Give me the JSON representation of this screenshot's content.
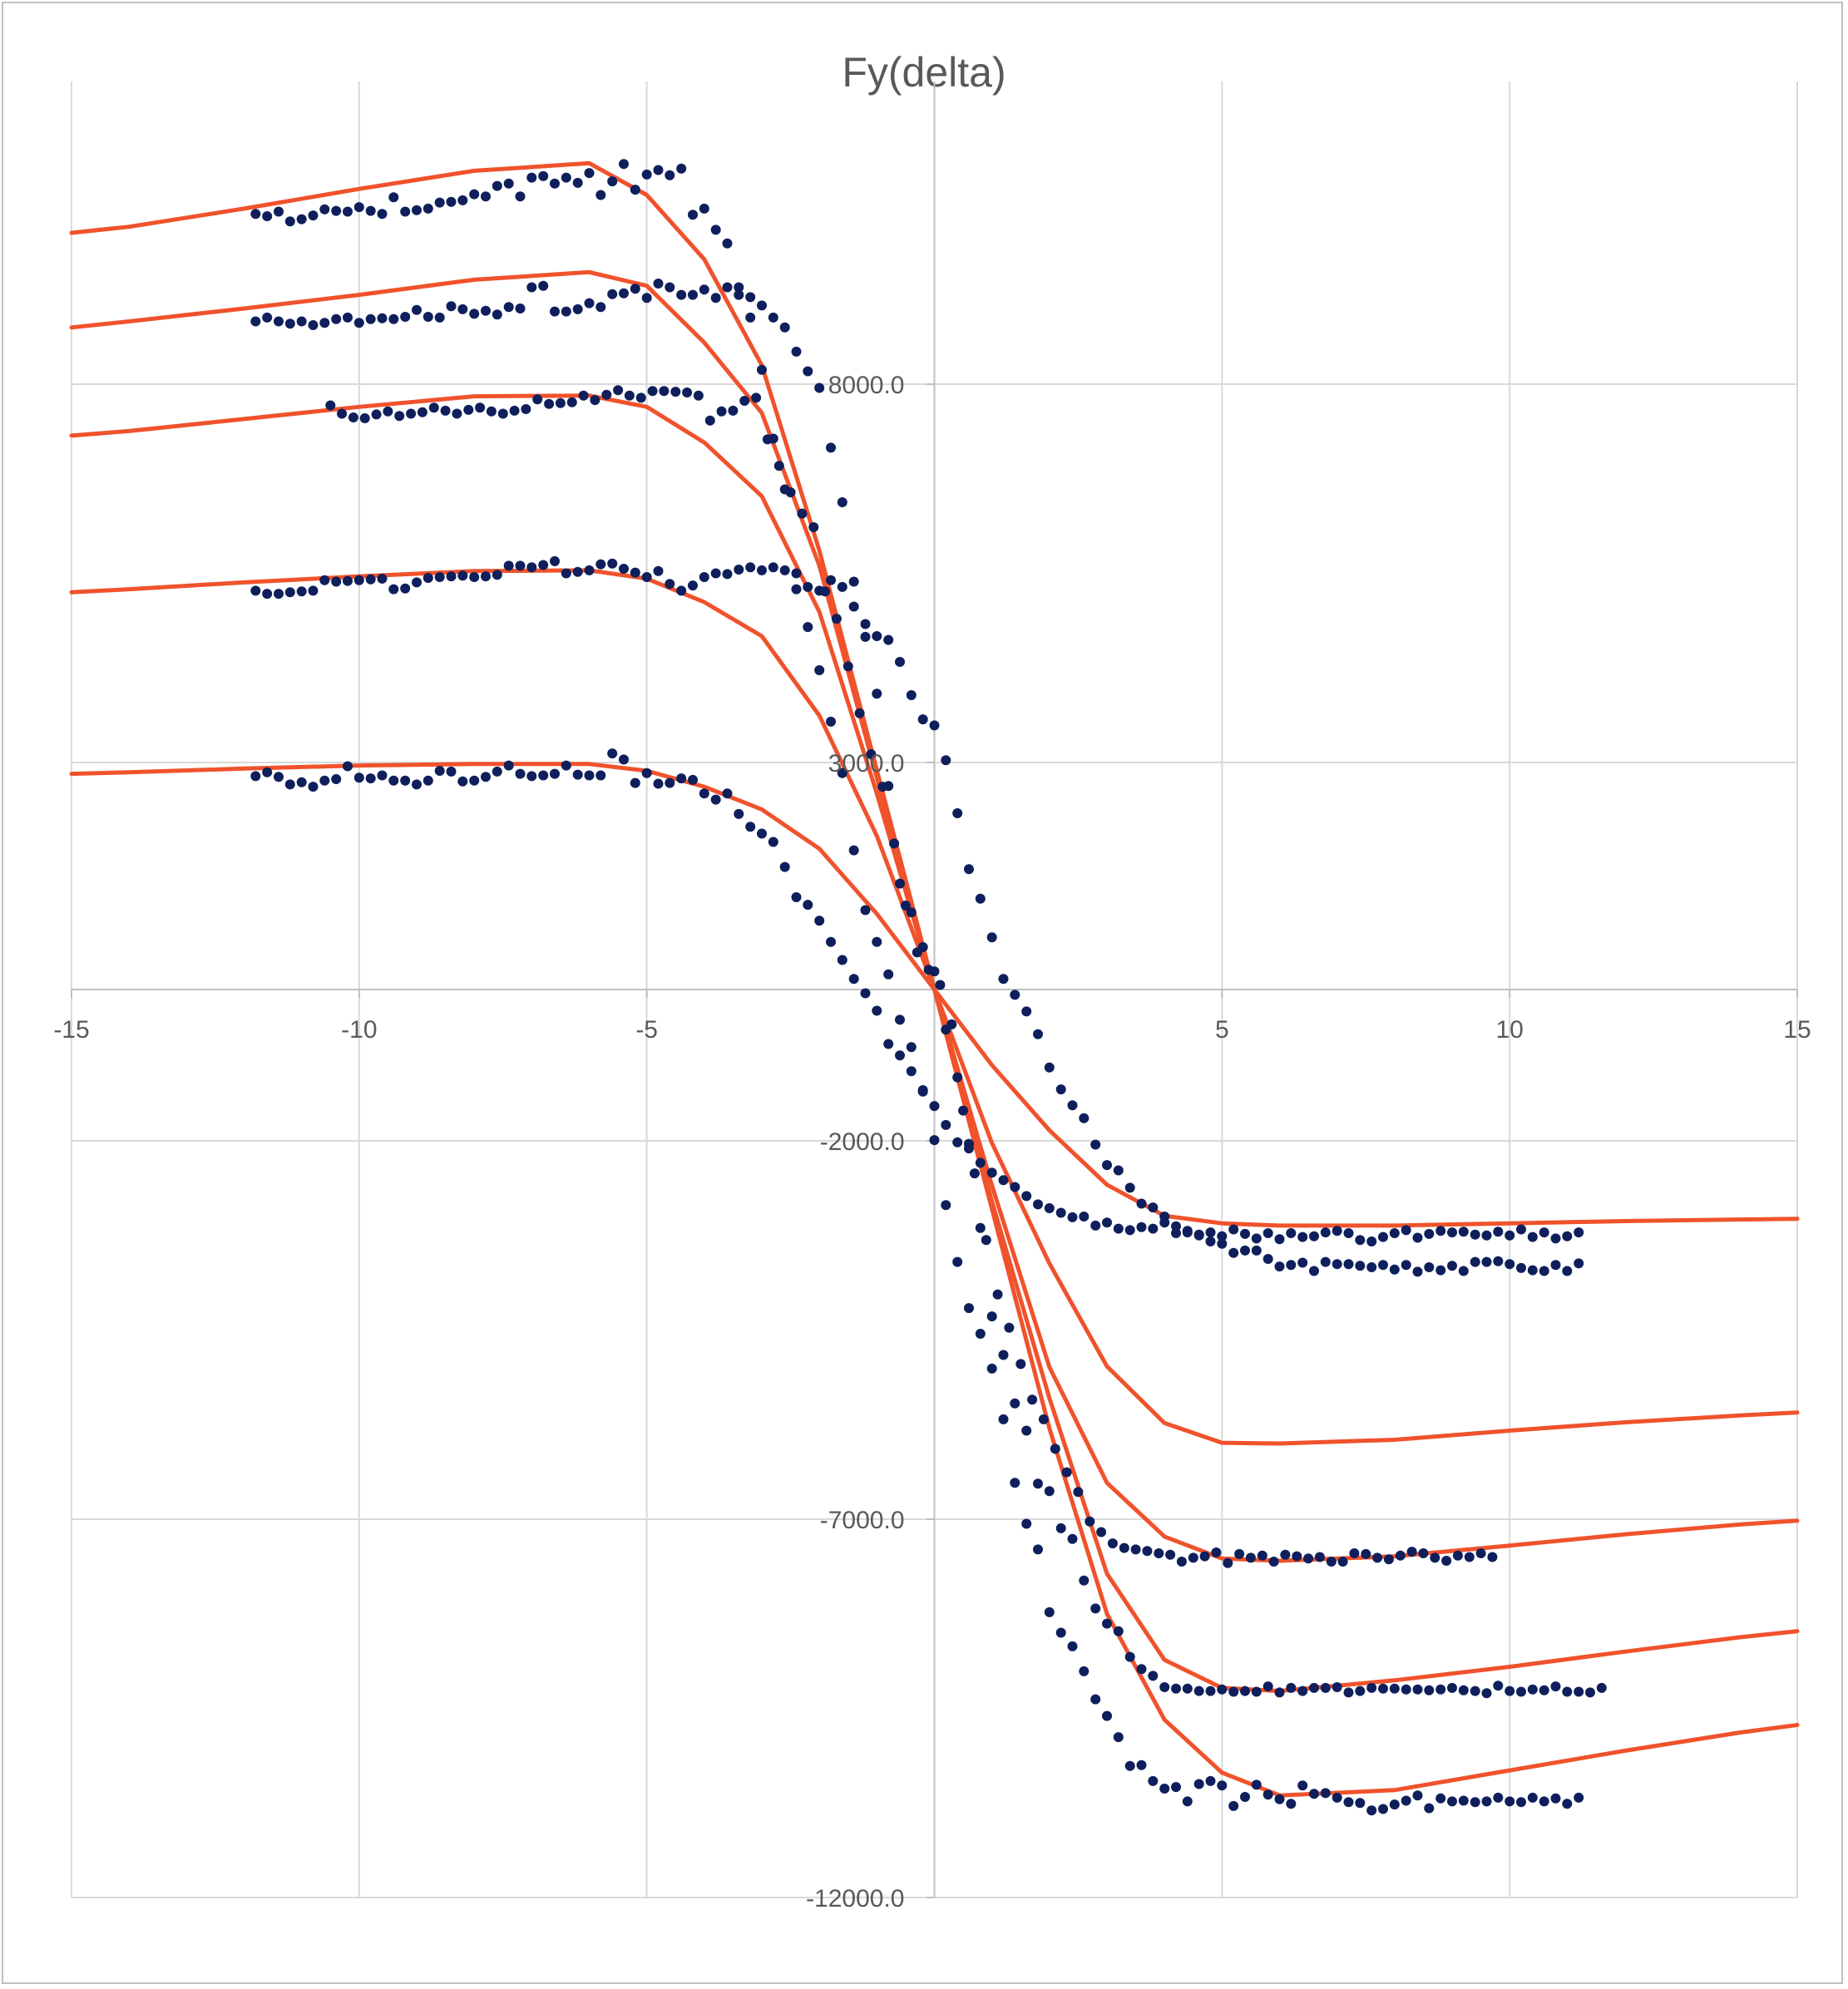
{
  "chart_data": {
    "type": "scatter",
    "title": "Fy(delta)",
    "xlabel": "",
    "ylabel": "",
    "xlim": [
      -15,
      15
    ],
    "ylim": [
      -12000,
      12000
    ],
    "x_ticks": [
      -15,
      -10,
      -5,
      0,
      5,
      10,
      15
    ],
    "x_tick_labels": [
      "-15",
      "-10",
      "-5",
      "",
      "5",
      "10",
      "15"
    ],
    "y_ticks": [
      8000,
      3000,
      -2000,
      -7000,
      -12000
    ],
    "y_tick_labels": [
      "8000.0",
      "3000.0",
      "-2000.0",
      "-7000.0",
      "-12000.0"
    ],
    "grid": true,
    "legend": "none",
    "colors": {
      "model": "#f0522c",
      "measured": "#0f1f5c",
      "grid": "#d9d9d9",
      "axis": "#bfbfbf",
      "text": "#595959"
    },
    "model_x": [
      -15,
      -14,
      -12,
      -10,
      -8,
      -6,
      -5,
      -4,
      -3,
      -2,
      -1,
      0,
      1,
      2,
      3,
      4,
      5,
      6,
      8,
      10,
      12,
      14,
      15
    ],
    "model_series": [
      {
        "name": "model-1",
        "y": [
          10000,
          10080,
          10320,
          10580,
          10820,
          10920,
          10500,
          9650,
          8250,
          5800,
          2900,
          0,
          -2900,
          -5800,
          -8250,
          -9650,
          -10350,
          -10650,
          -10580,
          -10320,
          -10060,
          -9820,
          -9720
        ]
      },
      {
        "name": "model-2",
        "y": [
          8750,
          8830,
          9000,
          9180,
          9380,
          9480,
          9300,
          8550,
          7620,
          5600,
          2800,
          0,
          -2800,
          -5400,
          -7720,
          -8860,
          -9230,
          -9270,
          -9130,
          -8950,
          -8750,
          -8560,
          -8480
        ]
      },
      {
        "name": "model-3",
        "y": [
          7320,
          7380,
          7540,
          7700,
          7840,
          7850,
          7700,
          7230,
          6520,
          4990,
          2590,
          0,
          -2590,
          -4990,
          -6520,
          -7230,
          -7520,
          -7550,
          -7490,
          -7350,
          -7200,
          -7070,
          -7020
        ]
      },
      {
        "name": "model-4",
        "y": [
          5250,
          5290,
          5380,
          5460,
          5530,
          5540,
          5430,
          5120,
          4670,
          3620,
          2030,
          0,
          -2030,
          -3620,
          -4980,
          -5730,
          -5990,
          -6000,
          -5950,
          -5830,
          -5720,
          -5630,
          -5590
        ]
      },
      {
        "name": "model-5",
        "y": [
          2850,
          2870,
          2920,
          2960,
          2980,
          2980,
          2890,
          2680,
          2380,
          1860,
          1000,
          0,
          -1000,
          -1860,
          -2580,
          -2990,
          -3090,
          -3120,
          -3120,
          -3090,
          -3060,
          -3040,
          -3030
        ]
      }
    ],
    "measured_series": [
      {
        "name": "measured-1",
        "mode": "sweep",
        "x_start": -11.8,
        "x_end": 11.2,
        "x_step": 0.2,
        "y": [
          10250,
          10220,
          10280,
          10150,
          10180,
          10230,
          10310,
          10290,
          10280,
          10340,
          10290,
          10250,
          10470,
          10280,
          10300,
          10320,
          10400,
          10410,
          10430,
          10510,
          10480,
          10620,
          10650,
          10480,
          10730,
          10750,
          10650,
          10730,
          10660,
          10790,
          10500,
          10680,
          10910,
          10570,
          10770,
          10830,
          10760,
          10850,
          10240,
          10320,
          10040,
          9860,
          9180,
          8880,
          8190,
          7280,
          6610,
          5500,
          4790,
          4220,
          3540,
          2860,
          1840,
          1050,
          630,
          200,
          -400,
          -760,
          -1350,
          -1990,
          -2850,
          -3600,
          -4210,
          -4550,
          -5010,
          -5680,
          -6520,
          -7060,
          -7400,
          -8230,
          -8500,
          -8680,
          -9010,
          -9380,
          -9600,
          -9880,
          -10260,
          -10250,
          -10460,
          -10560,
          -10540,
          -10730,
          -10500,
          -10460,
          -10520,
          -10790,
          -10670,
          -10510,
          -10640,
          -10700,
          -10760,
          -10520,
          -10630,
          -10620,
          -10680,
          -10740,
          -10750,
          -10850,
          -10830,
          -10770,
          -10720,
          -10650,
          -10820,
          -10690,
          -10730,
          -10720,
          -10740,
          -10730,
          -10680,
          -10730,
          -10740,
          -10680,
          -10730,
          -10690,
          -10760,
          -10680
        ]
      },
      {
        "name": "measured-2",
        "mode": "sweep",
        "x_start": -11.8,
        "x_end": 11.7,
        "x_step": 0.2,
        "y": [
          8830,
          8880,
          8830,
          8800,
          8830,
          8780,
          8810,
          8860,
          8880,
          8810,
          8860,
          8870,
          8860,
          8890,
          8980,
          8890,
          8880,
          9030,
          8990,
          8930,
          8970,
          8920,
          9020,
          9000,
          9280,
          9300,
          8960,
          8960,
          8990,
          9070,
          9020,
          9190,
          9200,
          9260,
          9140,
          9330,
          9280,
          9180,
          9180,
          9250,
          9140,
          9280,
          9280,
          9150,
          9040,
          8880,
          8750,
          8430,
          8170,
          7950,
          7160,
          6440,
          5390,
          4660,
          3910,
          2690,
          1400,
          1020,
          560,
          240,
          -530,
          -1160,
          -2040,
          -3150,
          -4320,
          -4830,
          -5470,
          -5830,
          -6530,
          -6630,
          -7120,
          -7260,
          -7810,
          -8180,
          -8380,
          -8480,
          -8820,
          -8980,
          -9070,
          -9220,
          -9240,
          -9240,
          -9270,
          -9270,
          -9250,
          -9280,
          -9270,
          -9280,
          -9210,
          -9290,
          -9230,
          -9270,
          -9230,
          -9230,
          -9220,
          -9290,
          -9270,
          -9230,
          -9240,
          -9240,
          -9250,
          -9250,
          -9260,
          -9250,
          -9230,
          -9260,
          -9270,
          -9300,
          -9200,
          -9270,
          -9280,
          -9250,
          -9260,
          -9210,
          -9280,
          -9280,
          -9290,
          -9230
        ]
      },
      {
        "name": "measured-3",
        "mode": "sweep",
        "x_start": -10.5,
        "x_end": 9.8,
        "x_step": 0.2,
        "y": [
          7720,
          7610,
          7560,
          7550,
          7600,
          7640,
          7580,
          7610,
          7630,
          7690,
          7650,
          7610,
          7660,
          7690,
          7640,
          7610,
          7650,
          7670,
          7800,
          7740,
          7750,
          7760,
          7850,
          7790,
          7860,
          7920,
          7850,
          7820,
          7910,
          7910,
          7900,
          7890,
          7850,
          7520,
          7640,
          7650,
          7780,
          7820,
          7270,
          6920,
          6570,
          6290,
          6110,
          5260,
          4900,
          4270,
          3650,
          3110,
          2680,
          1930,
          1110,
          490,
          260,
          60,
          -460,
          -1600,
          -2430,
          -3310,
          -4030,
          -4470,
          -4950,
          -5420,
          -5680,
          -6070,
          -6380,
          -6640,
          -7030,
          -7170,
          -7320,
          -7380,
          -7400,
          -7420,
          -7450,
          -7470,
          -7560,
          -7510,
          -7490,
          -7440,
          -7580,
          -7460,
          -7510,
          -7480,
          -7560,
          -7470,
          -7490,
          -7520,
          -7500,
          -7560,
          -7560,
          -7450,
          -7460,
          -7510,
          -7530,
          -7480,
          -7430,
          -7450,
          -7510,
          -7550,
          -7480,
          -7500,
          -7450,
          -7500
        ]
      },
      {
        "name": "measured-4",
        "mode": "sweep",
        "x_start": -11.8,
        "x_end": 11.2,
        "x_step": 0.2,
        "y": [
          5270,
          5230,
          5230,
          5250,
          5260,
          5270,
          5410,
          5390,
          5400,
          5410,
          5420,
          5430,
          5290,
          5300,
          5380,
          5440,
          5450,
          5460,
          5470,
          5450,
          5460,
          5480,
          5600,
          5600,
          5580,
          5610,
          5660,
          5500,
          5520,
          5540,
          5620,
          5630,
          5560,
          5510,
          5450,
          5530,
          5360,
          5270,
          5340,
          5450,
          5500,
          5490,
          5550,
          5580,
          5540,
          5580,
          5540,
          5290,
          5320,
          5270,
          5410,
          5320,
          5060,
          4830,
          4670,
          4620,
          4330,
          3890,
          3570,
          3490,
          3030,
          2330,
          1590,
          1200,
          690,
          140,
          -70,
          -290,
          -590,
          -1030,
          -1320,
          -1530,
          -1700,
          -2050,
          -2320,
          -2390,
          -2620,
          -2830,
          -2880,
          -3000,
          -3130,
          -3210,
          -3240,
          -3330,
          -3360,
          -3480,
          -3450,
          -3450,
          -3560,
          -3660,
          -3640,
          -3610,
          -3720,
          -3600,
          -3630,
          -3630,
          -3650,
          -3670,
          -3640,
          -3700,
          -3640,
          -3730,
          -3670,
          -3710,
          -3650,
          -3720,
          -3600,
          -3600,
          -3590,
          -3630,
          -3680,
          -3710,
          -3720,
          -3640,
          -3720,
          -3620
        ]
      },
      {
        "name": "measured-5",
        "mode": "sweep",
        "x_start": -11.8,
        "x_end": 11.6,
        "x_step": 0.2,
        "y": [
          2820,
          2870,
          2810,
          2710,
          2740,
          2680,
          2760,
          2780,
          2950,
          2800,
          2790,
          2830,
          2760,
          2760,
          2710,
          2760,
          2890,
          2880,
          2750,
          2760,
          2810,
          2880,
          2960,
          2850,
          2820,
          2830,
          2850,
          2960,
          2840,
          2830,
          2830,
          3120,
          3040,
          2730,
          2860,
          2720,
          2730,
          2790,
          2770,
          2590,
          2510,
          2590,
          2320,
          2150,
          2060,
          1950,
          1620,
          1220,
          1120,
          910,
          630,
          390,
          140,
          -50,
          -280,
          -720,
          -870,
          -1080,
          -1330,
          -1540,
          -1790,
          -2020,
          -2100,
          -2290,
          -2420,
          -2520,
          -2610,
          -2730,
          -2840,
          -2890,
          -2950,
          -3010,
          -3000,
          -3120,
          -3080,
          -3160,
          -3180,
          -3140,
          -3160,
          -3080,
          -3220,
          -3190,
          -3250,
          -3210,
          -3260,
          -3170,
          -3230,
          -3290,
          -3220,
          -3300,
          -3220,
          -3270,
          -3260,
          -3210,
          -3190,
          -3220,
          -3310,
          -3330,
          -3270,
          -3220,
          -3180,
          -3280,
          -3230,
          -3190,
          -3210,
          -3200,
          -3240,
          -3250,
          -3200,
          -3250,
          -3170,
          -3270,
          -3210,
          -3290,
          -3260,
          -3210
        ]
      }
    ]
  }
}
